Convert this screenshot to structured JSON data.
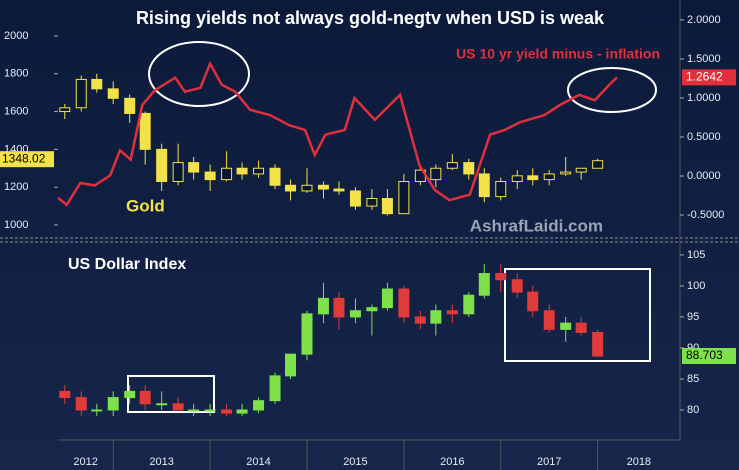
{
  "chart_data": [
    {
      "type": "candlestick",
      "title": "Rising yields not always gold-negtv when USD is weak",
      "watermark": "AshrafLaidi.com",
      "xlim": [
        2012.43,
        2018.85
      ],
      "ylim": [
        947,
        2190
      ],
      "yticks": [
        1000,
        1200,
        1400,
        1600,
        1800,
        2000
      ],
      "y2lim": [
        -0.756,
        2.256
      ],
      "y2ticks": [
        {
          "value": 2,
          "label": "2.0000"
        },
        {
          "value": 1.5,
          "label": "1.5000"
        },
        {
          "value": 1,
          "label": "1.0000"
        },
        {
          "value": 0.5,
          "label": "0.5000"
        },
        {
          "value": 0,
          "label": "0.0000"
        },
        {
          "value": -0.5,
          "label": "-0.5000"
        }
      ],
      "last_value": 1348.02,
      "series": [
        {
          "name": "Gold",
          "up_color": "#0a1730",
          "down_color": "#f3e14a",
          "color": "#f3e14a",
          "x": [
            2012.5,
            2012.67,
            2012.83,
            2013.0,
            2013.17,
            2013.33,
            2013.5,
            2013.67,
            2013.83,
            2014.0,
            2014.17,
            2014.33,
            2014.5,
            2014.67,
            2014.83,
            2015.0,
            2015.17,
            2015.33,
            2015.5,
            2015.67,
            2015.83,
            2016.0,
            2016.17,
            2016.33,
            2016.5,
            2016.67,
            2016.83,
            2017.0,
            2017.17,
            2017.33,
            2017.5,
            2017.67,
            2017.83,
            2018.0
          ],
          "open": [
            1600,
            1620,
            1770,
            1720,
            1670,
            1590,
            1400,
            1230,
            1330,
            1280,
            1240,
            1300,
            1270,
            1300,
            1210,
            1180,
            1210,
            1190,
            1180,
            1100,
            1140,
            1060,
            1230,
            1240,
            1300,
            1330,
            1270,
            1150,
            1230,
            1260,
            1240,
            1270,
            1280,
            1300
          ],
          "high": [
            1640,
            1790,
            1800,
            1760,
            1690,
            1600,
            1430,
            1430,
            1360,
            1320,
            1390,
            1330,
            1340,
            1320,
            1240,
            1300,
            1230,
            1230,
            1200,
            1190,
            1190,
            1270,
            1300,
            1320,
            1375,
            1350,
            1300,
            1250,
            1290,
            1300,
            1290,
            1360,
            1300,
            1350
          ],
          "low": [
            1560,
            1600,
            1700,
            1640,
            1540,
            1320,
            1180,
            1210,
            1240,
            1180,
            1230,
            1240,
            1250,
            1190,
            1130,
            1170,
            1140,
            1160,
            1080,
            1080,
            1050,
            1060,
            1210,
            1200,
            1290,
            1240,
            1120,
            1130,
            1190,
            1210,
            1210,
            1260,
            1240,
            1300
          ],
          "close": [
            1620,
            1770,
            1720,
            1670,
            1590,
            1400,
            1230,
            1330,
            1280,
            1240,
            1300,
            1270,
            1300,
            1210,
            1180,
            1210,
            1190,
            1180,
            1100,
            1140,
            1060,
            1230,
            1290,
            1300,
            1330,
            1270,
            1150,
            1230,
            1260,
            1240,
            1270,
            1280,
            1300,
            1340
          ]
        },
        {
          "name": "US 10 yr yield minus - inflation",
          "type": "line",
          "axis": "y2",
          "color": "#e0303c",
          "x": [
            2012.43,
            2012.52,
            2012.66,
            2012.81,
            2012.97,
            2013.07,
            2013.18,
            2013.3,
            2013.43,
            2013.64,
            2013.74,
            2013.9,
            2014.0,
            2014.12,
            2014.26,
            2014.41,
            2014.62,
            2014.82,
            2014.98,
            2015.08,
            2015.19,
            2015.39,
            2015.49,
            2015.7,
            2015.96,
            2016.06,
            2016.16,
            2016.32,
            2016.47,
            2016.68,
            2016.89,
            2017.04,
            2017.2,
            2017.45,
            2017.61,
            2017.81,
            2017.97,
            2018.12,
            2018.2
          ],
          "values": [
            -0.28,
            -0.37,
            -0.09,
            -0.12,
            0.01,
            0.33,
            0.21,
            0.91,
            1.1,
            1.26,
            1.08,
            1.13,
            1.44,
            1.17,
            1.08,
            0.85,
            0.78,
            0.65,
            0.59,
            0.27,
            0.53,
            0.59,
            1.0,
            0.72,
            1.04,
            0.59,
            0.14,
            -0.18,
            -0.31,
            -0.24,
            0.53,
            0.59,
            0.69,
            0.78,
            0.91,
            1.04,
            0.97,
            1.17,
            1.2642
          ]
        }
      ]
    },
    {
      "type": "candlestick",
      "title": "US Dollar Index",
      "xlim": [
        2012.43,
        2018.85
      ],
      "xticks": [
        2012,
        2013,
        2014,
        2015,
        2016,
        2017,
        2018
      ],
      "ylim": [
        75.16,
        106.6
      ],
      "yticks": [
        80,
        85,
        90,
        95,
        100,
        105
      ],
      "last_value": 88.703,
      "series": [
        {
          "name": "US Dollar Index",
          "up_color": "#7ee04a",
          "down_color": "#e03a3a",
          "color": "#7ee04a",
          "x": [
            2012.5,
            2012.67,
            2012.83,
            2013.0,
            2013.17,
            2013.33,
            2013.5,
            2013.67,
            2013.83,
            2014.0,
            2014.17,
            2014.33,
            2014.5,
            2014.67,
            2014.83,
            2015.0,
            2015.17,
            2015.33,
            2015.5,
            2015.67,
            2015.83,
            2016.0,
            2016.17,
            2016.33,
            2016.5,
            2016.67,
            2016.83,
            2017.0,
            2017.17,
            2017.33,
            2017.5,
            2017.67,
            2017.83,
            2018.0
          ],
          "open": [
            83,
            82,
            80,
            80,
            82,
            83,
            81,
            81,
            80,
            80,
            80,
            79.5,
            80,
            81.5,
            85.5,
            89,
            95.5,
            98,
            95,
            96,
            96.5,
            99.5,
            95,
            94,
            96,
            95.5,
            98.5,
            102,
            101,
            99,
            96,
            93,
            94,
            92.5
          ],
          "high": [
            84,
            83,
            81,
            83,
            84,
            84,
            83,
            82,
            81,
            81,
            81,
            81,
            82,
            86,
            89,
            96,
            100.5,
            99,
            98,
            97,
            100.5,
            100,
            96,
            97,
            97,
            99,
            103.5,
            103.5,
            102,
            100,
            97,
            95,
            95,
            93
          ],
          "low": [
            81,
            79,
            79,
            79,
            81,
            80,
            80,
            80,
            79,
            79,
            79,
            79,
            79.5,
            81,
            85,
            88,
            94,
            93,
            94,
            92,
            96,
            94,
            93,
            92,
            94,
            95,
            98,
            99,
            98,
            95,
            92.5,
            91,
            92,
            88.5
          ],
          "close": [
            82,
            80,
            80,
            82,
            83,
            81,
            81,
            80,
            80,
            80,
            79.5,
            80,
            81.5,
            85.5,
            89,
            95.5,
            98,
            95,
            96,
            96.5,
            99.5,
            95,
            94,
            96,
            95.5,
            98.5,
            102,
            101,
            99,
            96,
            93,
            94,
            92.5,
            88.7
          ]
        }
      ]
    }
  ]
}
